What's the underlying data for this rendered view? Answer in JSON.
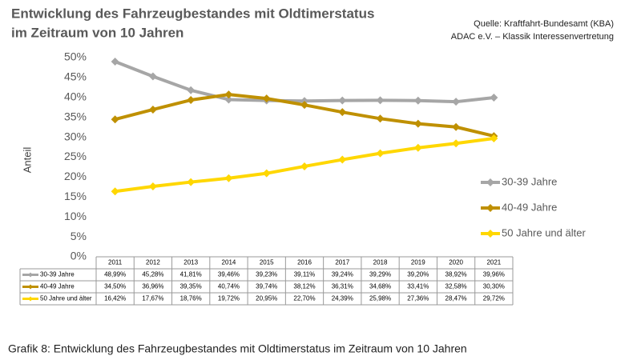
{
  "chart_data": {
    "type": "line",
    "title": [
      "Entwicklung des Fahrzeugbestandes mit Oldtimerstatus",
      "im Zeitraum von 10 Jahren"
    ],
    "source": [
      "Quelle: Kraftfahrt-Bundesamt (KBA)",
      "ADAC e.V. – Klassik Interessenvertretung"
    ],
    "y_label": "Anteil",
    "caption": "Grafik 8: Entwicklung des Fahrzeugbestandes mit Oldtimerstatus im Zeitraum von 10 Jahren",
    "categories": [
      "2011",
      "2012",
      "2013",
      "2014",
      "2015",
      "2016",
      "2017",
      "2018",
      "2019",
      "2020",
      "2021"
    ],
    "series": [
      {
        "name": "30-39 Jahre",
        "color": "#a6a6a6",
        "values": [
          48.99,
          45.28,
          41.81,
          39.46,
          39.23,
          39.11,
          39.24,
          39.29,
          39.2,
          38.92,
          39.96
        ],
        "value_labels": [
          "48,99%",
          "45,28%",
          "41,81%",
          "39,46%",
          "39,23%",
          "39,11%",
          "39,24%",
          "39,29%",
          "39,20%",
          "38,92%",
          "39,96%"
        ]
      },
      {
        "name": "40-49 Jahre",
        "color": "#bf9000",
        "values": [
          34.5,
          36.96,
          39.35,
          40.74,
          39.74,
          38.12,
          36.31,
          34.68,
          33.41,
          32.58,
          30.3
        ],
        "value_labels": [
          "34,50%",
          "36,96%",
          "39,35%",
          "40,74%",
          "39,74%",
          "38,12%",
          "36,31%",
          "34,68%",
          "33,41%",
          "32,58%",
          "30,30%"
        ]
      },
      {
        "name": "50 Jahre und älter",
        "color": "#ffd700",
        "values": [
          16.42,
          17.67,
          18.76,
          19.72,
          20.95,
          22.7,
          24.39,
          25.98,
          27.36,
          28.47,
          29.72
        ],
        "value_labels": [
          "16,42%",
          "17,67%",
          "18,76%",
          "19,72%",
          "20,95%",
          "22,70%",
          "24,39%",
          "25,98%",
          "27,36%",
          "28,47%",
          "29,72%"
        ]
      }
    ],
    "ylim": [
      0,
      50
    ],
    "yticks": [
      {
        "value": 0,
        "label": "0%"
      },
      {
        "value": 5,
        "label": "5%"
      },
      {
        "value": 10,
        "label": "10%"
      },
      {
        "value": 15,
        "label": "15%"
      },
      {
        "value": 20,
        "label": "20%"
      },
      {
        "value": 25,
        "label": "25%"
      },
      {
        "value": 30,
        "label": "30%"
      },
      {
        "value": 35,
        "label": "35%"
      },
      {
        "value": 40,
        "label": "40%"
      },
      {
        "value": 45,
        "label": "45%"
      },
      {
        "value": 50,
        "label": "50%"
      }
    ],
    "grid": false,
    "legend": "right"
  }
}
